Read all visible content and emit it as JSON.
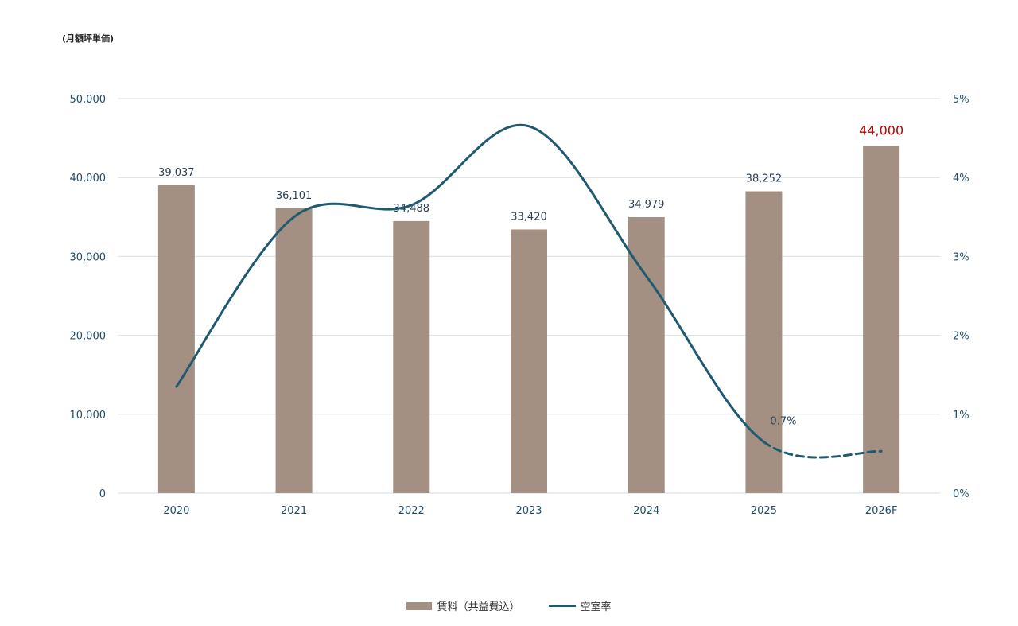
{
  "unit_label": "(月額坪単価)",
  "colors": {
    "bar": "#a39083",
    "line": "#1f5a70",
    "grid": "#d6dee6",
    "highlight": "#c00000",
    "axis_text": "#1f4e6b"
  },
  "legend": {
    "bar_label": "賃料（共益費込）",
    "line_label": "空室率"
  },
  "chart_data": {
    "type": "bar",
    "categories": [
      "2020",
      "2021",
      "2022",
      "2023",
      "2024",
      "2025",
      "2026F"
    ],
    "series": [
      {
        "name": "賃料（共益費込）",
        "type": "bar",
        "axis": "left",
        "values": [
          39037,
          36101,
          34488,
          33420,
          34979,
          38252,
          44000
        ],
        "labels": [
          "39,037",
          "36,101",
          "34,488",
          "33,420",
          "34,979",
          "38,252",
          "44,000"
        ],
        "highlight_index": 6
      },
      {
        "name": "空室率",
        "type": "line",
        "axis": "right",
        "values": [
          1.35,
          3.5,
          3.65,
          4.65,
          2.75,
          0.65,
          0.53
        ],
        "dashed_from_index": 5,
        "point_label": {
          "index": 5,
          "text": "0.7%"
        }
      }
    ],
    "y_left": {
      "min": 0,
      "max": 50000,
      "ticks": [
        "0",
        "10,000",
        "20,000",
        "30,000",
        "40,000",
        "50,000"
      ]
    },
    "y_right": {
      "min": 0,
      "max": 5,
      "ticks": [
        "0%",
        "1%",
        "2%",
        "3%",
        "4%",
        "5%"
      ]
    },
    "grid": true,
    "legend_position": "bottom"
  }
}
